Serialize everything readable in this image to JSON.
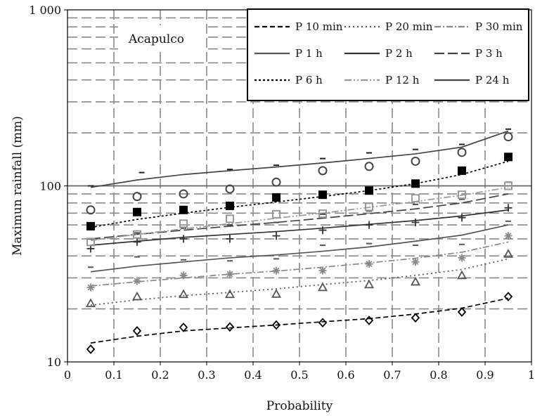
{
  "chart_data": {
    "type": "line",
    "annotation": "Acapulco",
    "xlabel": "Probability",
    "ylabel": "Maximun rainfall (mm)",
    "xlim": [
      0,
      1
    ],
    "ylim": [
      10,
      1000
    ],
    "yscale": "log",
    "grid": true,
    "legend_position": "top-right",
    "x_ticks": [
      "0",
      "0.1",
      "0.2",
      "0.3",
      "0.4",
      "0.5",
      "0.6",
      "0.7",
      "0.8",
      "0.9",
      "1"
    ],
    "y_ticks": [
      {
        "value": 10,
        "label": "10"
      },
      {
        "value": 100,
        "label": "100"
      },
      {
        "value": 1000,
        "label": "1 000"
      }
    ],
    "x": [
      0.05,
      0.15,
      0.25,
      0.35,
      0.45,
      0.55,
      0.65,
      0.75,
      0.85,
      0.95
    ],
    "series": [
      {
        "name": "P 10 min",
        "marker": "diamond",
        "dash": "7,4",
        "color": "#000000",
        "values": [
          11.8,
          15.0,
          15.7,
          15.8,
          16.2,
          16.7,
          17.2,
          17.8,
          19.2,
          23.5
        ],
        "trend": [
          12.8,
          14.0,
          15.0,
          15.6,
          16.2,
          16.9,
          17.6,
          18.7,
          20.2,
          23.0
        ]
      },
      {
        "name": "P 20 min",
        "marker": "triangle",
        "dash": "2,4",
        "color": "#555555",
        "values": [
          21.5,
          23.5,
          24.2,
          24.2,
          24.3,
          26.5,
          27.5,
          28.5,
          31.0,
          41.0
        ],
        "trend": [
          21.0,
          22.5,
          23.8,
          24.8,
          26.0,
          27.5,
          29.0,
          31.0,
          33.5,
          38.5
        ]
      },
      {
        "name": "P 30 min",
        "marker": "asterisk",
        "dash": "9,3,2,3",
        "color": "#888888",
        "values": [
          26.5,
          28.8,
          31.0,
          31.5,
          33.0,
          33.0,
          36.0,
          37.0,
          39.0,
          52.0
        ],
        "trend": [
          27.0,
          28.5,
          30.0,
          31.5,
          32.8,
          34.5,
          36.5,
          38.8,
          42.0,
          48.0
        ]
      },
      {
        "name": "P 1 h",
        "marker": "dash",
        "dash": "",
        "color": "#555555",
        "values": [
          34.5,
          39.5,
          38.0,
          37.5,
          38.5,
          46.0,
          47.0,
          46.0,
          46.5,
          63.0
        ],
        "trend": [
          32.5,
          35.0,
          37.0,
          39.0,
          40.5,
          42.5,
          45.0,
          48.5,
          52.5,
          60.0
        ]
      },
      {
        "name": "P 2 h",
        "marker": "plus",
        "dash": "",
        "color": "#333333",
        "values": [
          44.0,
          48.0,
          50.0,
          50.0,
          52.0,
          56.0,
          60.0,
          62.0,
          66.0,
          75.0
        ],
        "trend": [
          46.0,
          48.5,
          51.0,
          53.0,
          55.0,
          57.5,
          60.5,
          63.5,
          67.5,
          73.0
        ]
      },
      {
        "name": "P 3 h",
        "marker": "dash",
        "dash": "14,5",
        "color": "#444444",
        "values": [
          50.0,
          54.0,
          57.5,
          60.0,
          62.0,
          69.0,
          72.0,
          78.5,
          84.0,
          105.0
        ],
        "trend": [
          50.0,
          53.0,
          56.0,
          59.0,
          62.0,
          65.5,
          69.5,
          74.0,
          80.0,
          90.0
        ]
      },
      {
        "name": "P 6 h",
        "marker": "filled-square",
        "dash": "3,3",
        "color": "#000000",
        "values": [
          59.0,
          71.0,
          73.0,
          77.0,
          86.0,
          89.0,
          94.0,
          103.0,
          122.0,
          146.0
        ],
        "trend": [
          58.0,
          64.5,
          70.0,
          75.5,
          81.0,
          87.0,
          94.0,
          103.0,
          116.0,
          138.0
        ]
      },
      {
        "name": "P 12 h",
        "marker": "open-square",
        "dash": "10,3,2,3,2,3",
        "color": "#999999",
        "values": [
          48.0,
          53.0,
          61.0,
          65.0,
          69.0,
          69.5,
          76.0,
          85.0,
          89.0,
          100.0
        ],
        "trend": [
          49.0,
          53.0,
          57.0,
          61.0,
          65.5,
          70.0,
          75.5,
          81.5,
          88.5,
          98.0
        ]
      },
      {
        "name": "P 24 h",
        "marker": "circle",
        "dash": "",
        "color": "#444444",
        "values": [
          73.0,
          87.0,
          90.0,
          96.0,
          105.0,
          122.0,
          129.0,
          138.0,
          155.0,
          190.0
        ],
        "trend": [
          98.0,
          108.0,
          116.0,
          122.0,
          128.0,
          135.0,
          143.0,
          152.0,
          166.0,
          205.0
        ]
      }
    ],
    "extra_markers": [
      {
        "x": 0.05,
        "y": 100.0
      },
      {
        "x": 0.16,
        "y": 119.0
      },
      {
        "x": 0.35,
        "y": 124.0
      },
      {
        "x": 0.45,
        "y": 131.0
      },
      {
        "x": 0.55,
        "y": 143.0
      },
      {
        "x": 0.65,
        "y": 154.0
      },
      {
        "x": 0.75,
        "y": 161.0
      },
      {
        "x": 0.85,
        "y": 172.0
      },
      {
        "x": 0.95,
        "y": 210.0
      }
    ]
  }
}
